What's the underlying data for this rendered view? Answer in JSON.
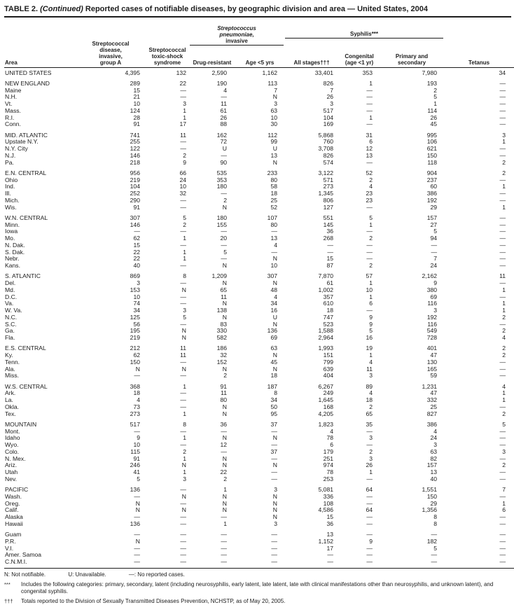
{
  "title": {
    "prefix": "TABLE 2.",
    "continued": "(Continued)",
    "rest": "Reported cases of notifiable diseases, by geographic division and area — United States, 2004"
  },
  "header": {
    "area": "Area",
    "strep_group_a": "Streptococcal\ndisease,\ninvasive,\ngroup A",
    "toxic_shock": "Streptococcal\ntoxic-shock\nsyndrome",
    "pneumo_italic": "Streptococcus\npneumoniae,",
    "pneumo_plain": "invasive",
    "drug_resistant": "Drug-resistant",
    "age_lt5": "Age <5 yrs",
    "syphilis": "Syphilis***",
    "all_stages": "All stages†††",
    "congenital": "Congenital\n(age <1 yr)",
    "primary_secondary": "Primary and\nsecondary",
    "tetanus": "Tetanus"
  },
  "groups": [
    {
      "rows": [
        {
          "area": "UNITED STATES",
          "values": [
            "4,395",
            "132",
            "2,590",
            "1,162",
            "33,401",
            "353",
            "7,980",
            "34"
          ]
        }
      ]
    },
    {
      "rows": [
        {
          "area": "NEW ENGLAND",
          "values": [
            "289",
            "22",
            "190",
            "113",
            "826",
            "1",
            "193",
            "—"
          ]
        },
        {
          "area": "Maine",
          "values": [
            "15",
            "—",
            "4",
            "7",
            "7",
            "—",
            "2",
            "—"
          ]
        },
        {
          "area": "N.H.",
          "values": [
            "21",
            "—",
            "—",
            "N",
            "26",
            "—",
            "5",
            "—"
          ]
        },
        {
          "area": "Vt.",
          "values": [
            "10",
            "3",
            "11",
            "3",
            "3",
            "—",
            "1",
            "—"
          ]
        },
        {
          "area": "Mass.",
          "values": [
            "124",
            "1",
            "61",
            "63",
            "517",
            "—",
            "114",
            "—"
          ]
        },
        {
          "area": "R.I.",
          "values": [
            "28",
            "1",
            "26",
            "10",
            "104",
            "1",
            "26",
            "—"
          ]
        },
        {
          "area": "Conn.",
          "values": [
            "91",
            "17",
            "88",
            "30",
            "169",
            "—",
            "45",
            "—"
          ]
        }
      ]
    },
    {
      "rows": [
        {
          "area": "MID. ATLANTIC",
          "values": [
            "741",
            "11",
            "162",
            "112",
            "5,868",
            "31",
            "995",
            "3"
          ]
        },
        {
          "area": "Upstate N.Y.",
          "values": [
            "255",
            "—",
            "72",
            "99",
            "760",
            "6",
            "106",
            "1"
          ]
        },
        {
          "area": "N.Y. City",
          "values": [
            "122",
            "—",
            "U",
            "U",
            "3,708",
            "12",
            "621",
            "—"
          ]
        },
        {
          "area": "N.J.",
          "values": [
            "146",
            "2",
            "—",
            "13",
            "826",
            "13",
            "150",
            "—"
          ]
        },
        {
          "area": "Pa.",
          "values": [
            "218",
            "9",
            "90",
            "N",
            "574",
            "—",
            "118",
            "2"
          ]
        }
      ]
    },
    {
      "rows": [
        {
          "area": "E.N. CENTRAL",
          "values": [
            "956",
            "66",
            "535",
            "233",
            "3,122",
            "52",
            "904",
            "2"
          ]
        },
        {
          "area": "Ohio",
          "values": [
            "219",
            "24",
            "353",
            "80",
            "571",
            "2",
            "237",
            "—"
          ]
        },
        {
          "area": "Ind.",
          "values": [
            "104",
            "10",
            "180",
            "58",
            "273",
            "4",
            "60",
            "1"
          ]
        },
        {
          "area": "Ill.",
          "values": [
            "252",
            "32",
            "—",
            "18",
            "1,345",
            "23",
            "386",
            "—"
          ]
        },
        {
          "area": "Mich.",
          "values": [
            "290",
            "—",
            "2",
            "25",
            "806",
            "23",
            "192",
            "—"
          ]
        },
        {
          "area": "Wis.",
          "values": [
            "91",
            "—",
            "N",
            "52",
            "127",
            "—",
            "29",
            "1"
          ]
        }
      ]
    },
    {
      "rows": [
        {
          "area": "W.N. CENTRAL",
          "values": [
            "307",
            "5",
            "180",
            "107",
            "551",
            "5",
            "157",
            "—"
          ]
        },
        {
          "area": "Minn.",
          "values": [
            "146",
            "2",
            "155",
            "80",
            "145",
            "1",
            "27",
            "—"
          ]
        },
        {
          "area": "Iowa",
          "values": [
            "—",
            "—",
            "—",
            "—",
            "36",
            "—",
            "5",
            "—"
          ]
        },
        {
          "area": "Mo.",
          "values": [
            "62",
            "1",
            "20",
            "13",
            "268",
            "2",
            "94",
            "—"
          ]
        },
        {
          "area": "N. Dak.",
          "values": [
            "15",
            "—",
            "—",
            "4",
            "—",
            "—",
            "—",
            "—"
          ]
        },
        {
          "area": "S. Dak.",
          "values": [
            "22",
            "1",
            "5",
            "—",
            "—",
            "—",
            "—",
            "—"
          ]
        },
        {
          "area": "Nebr.",
          "values": [
            "22",
            "1",
            "—",
            "N",
            "15",
            "—",
            "7",
            "—"
          ]
        },
        {
          "area": "Kans.",
          "values": [
            "40",
            "—",
            "N",
            "10",
            "87",
            "2",
            "24",
            "—"
          ]
        }
      ]
    },
    {
      "rows": [
        {
          "area": "S. ATLANTIC",
          "values": [
            "869",
            "8",
            "1,209",
            "307",
            "7,870",
            "57",
            "2,162",
            "11"
          ]
        },
        {
          "area": "Del.",
          "values": [
            "3",
            "—",
            "N",
            "N",
            "61",
            "1",
            "9",
            "—"
          ]
        },
        {
          "area": "Md.",
          "values": [
            "153",
            "N",
            "65",
            "48",
            "1,002",
            "10",
            "380",
            "1"
          ]
        },
        {
          "area": "D.C.",
          "values": [
            "10",
            "—",
            "11",
            "4",
            "357",
            "1",
            "69",
            "—"
          ]
        },
        {
          "area": "Va.",
          "values": [
            "74",
            "—",
            "N",
            "34",
            "610",
            "6",
            "116",
            "1"
          ]
        },
        {
          "area": "W. Va.",
          "values": [
            "34",
            "3",
            "138",
            "16",
            "18",
            "—",
            "3",
            "1"
          ]
        },
        {
          "area": "N.C.",
          "values": [
            "125",
            "5",
            "N",
            "U",
            "747",
            "9",
            "192",
            "2"
          ]
        },
        {
          "area": "S.C.",
          "values": [
            "56",
            "—",
            "83",
            "N",
            "523",
            "9",
            "116",
            "—"
          ]
        },
        {
          "area": "Ga.",
          "values": [
            "195",
            "N",
            "330",
            "136",
            "1,588",
            "5",
            "549",
            "2"
          ]
        },
        {
          "area": "Fla.",
          "values": [
            "219",
            "N",
            "582",
            "69",
            "2,964",
            "16",
            "728",
            "4"
          ]
        }
      ]
    },
    {
      "rows": [
        {
          "area": "E.S. CENTRAL",
          "values": [
            "212",
            "11",
            "186",
            "63",
            "1,993",
            "19",
            "401",
            "2"
          ]
        },
        {
          "area": "Ky.",
          "values": [
            "62",
            "11",
            "32",
            "N",
            "151",
            "1",
            "47",
            "2"
          ]
        },
        {
          "area": "Tenn.",
          "values": [
            "150",
            "—",
            "152",
            "45",
            "799",
            "4",
            "130",
            "—"
          ]
        },
        {
          "area": "Ala.",
          "values": [
            "N",
            "N",
            "N",
            "N",
            "639",
            "11",
            "165",
            "—"
          ]
        },
        {
          "area": "Miss.",
          "values": [
            "—",
            "—",
            "2",
            "18",
            "404",
            "3",
            "59",
            "—"
          ]
        }
      ]
    },
    {
      "rows": [
        {
          "area": "W.S. CENTRAL",
          "values": [
            "368",
            "1",
            "91",
            "187",
            "6,267",
            "89",
            "1,231",
            "4"
          ]
        },
        {
          "area": "Ark.",
          "values": [
            "18",
            "—",
            "11",
            "8",
            "249",
            "4",
            "47",
            "1"
          ]
        },
        {
          "area": "La.",
          "values": [
            "4",
            "—",
            "80",
            "34",
            "1,645",
            "18",
            "332",
            "1"
          ]
        },
        {
          "area": "Okla.",
          "values": [
            "73",
            "—",
            "N",
            "50",
            "168",
            "2",
            "25",
            "—"
          ]
        },
        {
          "area": "Tex.",
          "values": [
            "273",
            "1",
            "N",
            "95",
            "4,205",
            "65",
            "827",
            "2"
          ]
        }
      ]
    },
    {
      "rows": [
        {
          "area": "MOUNTAIN",
          "values": [
            "517",
            "8",
            "36",
            "37",
            "1,823",
            "35",
            "386",
            "5"
          ]
        },
        {
          "area": "Mont.",
          "values": [
            "—",
            "—",
            "—",
            "—",
            "4",
            "—",
            "4",
            "—"
          ]
        },
        {
          "area": "Idaho",
          "values": [
            "9",
            "1",
            "N",
            "N",
            "78",
            "3",
            "24",
            "—"
          ]
        },
        {
          "area": "Wyo.",
          "values": [
            "10",
            "—",
            "12",
            "—",
            "6",
            "—",
            "3",
            "—"
          ]
        },
        {
          "area": "Colo.",
          "values": [
            "115",
            "2",
            "—",
            "37",
            "179",
            "2",
            "63",
            "3"
          ]
        },
        {
          "area": "N. Mex.",
          "values": [
            "91",
            "1",
            "N",
            "—",
            "251",
            "3",
            "82",
            "—"
          ]
        },
        {
          "area": "Ariz.",
          "values": [
            "246",
            "N",
            "N",
            "N",
            "974",
            "26",
            "157",
            "2"
          ]
        },
        {
          "area": "Utah",
          "values": [
            "41",
            "1",
            "22",
            "—",
            "78",
            "1",
            "13",
            "—"
          ]
        },
        {
          "area": "Nev.",
          "values": [
            "5",
            "3",
            "2",
            "—",
            "253",
            "—",
            "40",
            "—"
          ]
        }
      ]
    },
    {
      "rows": [
        {
          "area": "PACIFIC",
          "values": [
            "136",
            "—",
            "1",
            "3",
            "5,081",
            "64",
            "1,551",
            "7"
          ]
        },
        {
          "area": "Wash.",
          "values": [
            "—",
            "N",
            "N",
            "N",
            "336",
            "—",
            "150",
            "—"
          ]
        },
        {
          "area": "Oreg.",
          "values": [
            "N",
            "—",
            "N",
            "N",
            "108",
            "—",
            "29",
            "1"
          ]
        },
        {
          "area": "Calif.",
          "values": [
            "N",
            "N",
            "N",
            "N",
            "4,586",
            "64",
            "1,356",
            "6"
          ]
        },
        {
          "area": "Alaska",
          "values": [
            "—",
            "—",
            "—",
            "N",
            "15",
            "—",
            "8",
            "—"
          ]
        },
        {
          "area": "Hawaii",
          "values": [
            "136",
            "—",
            "1",
            "3",
            "36",
            "—",
            "8",
            "—"
          ]
        }
      ]
    },
    {
      "rows": [
        {
          "area": "Guam",
          "values": [
            "—",
            "—",
            "—",
            "—",
            "13",
            "—",
            "—",
            "—"
          ]
        },
        {
          "area": "P.R.",
          "values": [
            "N",
            "—",
            "—",
            "—",
            "1,152",
            "9",
            "182",
            "—"
          ]
        },
        {
          "area": "V.I.",
          "values": [
            "—",
            "—",
            "—",
            "—",
            "17",
            "—",
            "5",
            "—"
          ]
        },
        {
          "area": "Amer. Samoa",
          "values": [
            "—",
            "—",
            "—",
            "—",
            "—",
            "—",
            "—",
            "—"
          ]
        },
        {
          "area": "C.N.M.I.",
          "values": [
            "—",
            "—",
            "—",
            "—",
            "—",
            "—",
            "—",
            "—"
          ]
        }
      ]
    }
  ],
  "footnotes": {
    "legend": [
      "N: Not notifiable.",
      "U: Unavailable.",
      "—: No reported cases."
    ],
    "notes": [
      {
        "marker": "***",
        "text": "Includes the following categories: primary, secondary, latent (including neurosyphilis, early latent, late latent, late with clinical manifestations other than neurosyphilis, and unknown latent), and congenital syphilis."
      },
      {
        "marker": "†††",
        "text": "Totals reported to the Division of Sexually Transmitted Diseases Prevention, NCHSTP, as of May 20, 2005."
      }
    ]
  }
}
